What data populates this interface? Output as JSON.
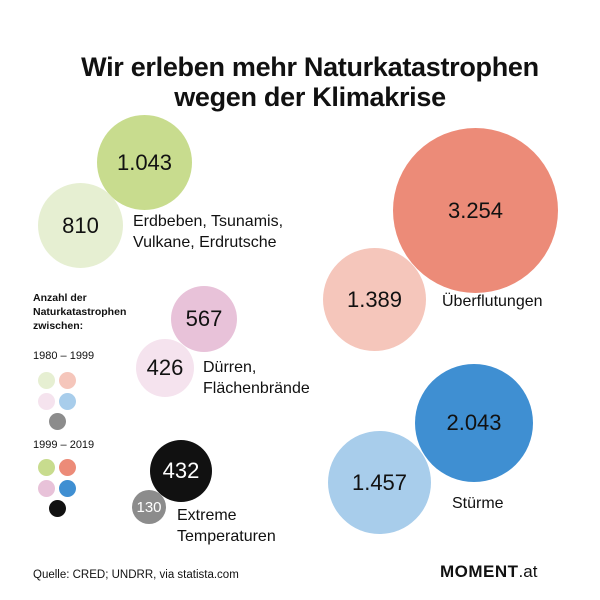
{
  "title": {
    "line1": "Wir erleben mehr Naturkatastrophen",
    "line2": "wegen der Klimakrise"
  },
  "colors": {
    "earthquake_2019": "#c8dc8e",
    "earthquake_1999": "#e6efd2",
    "flood_2019": "#ec8b78",
    "flood_1999": "#f5c6bb",
    "drought_2019": "#e8c2d9",
    "drought_1999": "#f5e3ee",
    "storm_2019": "#3f8fd2",
    "storm_1999": "#a8cdeb",
    "temp_2019": "#111111",
    "temp_1999": "#8c8c8c"
  },
  "chart_data": {
    "type": "bubble",
    "title": "Wir erleben mehr Naturkatastrophen wegen der Klimakrise",
    "legend_title": "Anzahl der Naturkatastrophen zwischen:",
    "periods": [
      "1980 – 1999",
      "1999 – 2019"
    ],
    "series": [
      {
        "name": "Erdbeben, Tsunamis, Vulkane, Erdrutsche",
        "label_lines": [
          "Erdbeben, Tsunamis,",
          "Vulkane, Erdrutsche"
        ],
        "values": [
          810,
          1043
        ],
        "value_labels": [
          "810",
          "1.043"
        ]
      },
      {
        "name": "Überflutungen",
        "label_lines": [
          "Überflutungen"
        ],
        "values": [
          1389,
          3254
        ],
        "value_labels": [
          "1.389",
          "3.254"
        ]
      },
      {
        "name": "Dürren, Flächenbrände",
        "label_lines": [
          "Dürren,",
          "Flächenbrände"
        ],
        "values": [
          426,
          567
        ],
        "value_labels": [
          "426",
          "567"
        ]
      },
      {
        "name": "Stürme",
        "label_lines": [
          "Stürme"
        ],
        "values": [
          1457,
          2043
        ],
        "value_labels": [
          "1.457",
          "2.043"
        ]
      },
      {
        "name": "Extreme Temperaturen",
        "label_lines": [
          "Extreme",
          "Temperaturen"
        ],
        "values": [
          130,
          432
        ],
        "value_labels": [
          "130",
          "432"
        ]
      }
    ]
  },
  "source": "Quelle:  CRED; UNDRR, via statista.com",
  "brand": {
    "name": "MOMENT",
    "suffix": ".at"
  }
}
